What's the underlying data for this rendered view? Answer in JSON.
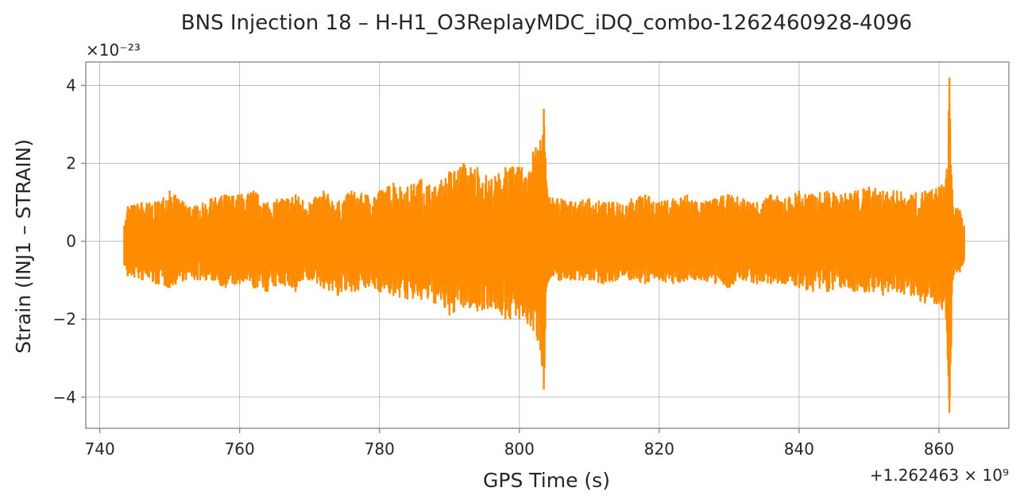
{
  "chart_data": {
    "type": "line",
    "title": "BNS Injection 18 – H-H1_O3ReplayMDC_iDQ_combo-1262460928-4096",
    "xlabel": "GPS Time (s)",
    "ylabel": "Strain (INJ1 – STRAIN)",
    "y_multiplier_text": "×10⁻²³",
    "x_offset_text": "+1.262463 × 10⁹",
    "xlim": [
      738,
      870
    ],
    "ylim": [
      -4.8,
      4.6
    ],
    "x_ticks": [
      740,
      760,
      780,
      800,
      820,
      840,
      860
    ],
    "x_tick_labels": [
      "740",
      "760",
      "780",
      "800",
      "820",
      "840",
      "860"
    ],
    "y_ticks": [
      -4,
      -2,
      0,
      2,
      4
    ],
    "y_tick_labels": [
      "−4",
      "−2",
      "0",
      "2",
      "4"
    ],
    "grid": true,
    "line_color": "#ff8c00",
    "series": [
      {
        "x": [
          743.5,
          744,
          746,
          748,
          750,
          752,
          754,
          756,
          758,
          760,
          762,
          764,
          766,
          768,
          770,
          772,
          774,
          776,
          778,
          780,
          782,
          784,
          786,
          788,
          790,
          792,
          794,
          796,
          798,
          800,
          802,
          803,
          803.5,
          804,
          806,
          808,
          810,
          812,
          814,
          816,
          818,
          820,
          822,
          824,
          826,
          828,
          830,
          832,
          834,
          836,
          838,
          840,
          842,
          844,
          846,
          848,
          850,
          852,
          854,
          856,
          858,
          860,
          861,
          861.5,
          862,
          863,
          863.6
        ],
        "envelope_upper": [
          0.4,
          0.9,
          1.0,
          1.0,
          1.3,
          1.0,
          0.9,
          1.1,
          1.2,
          1.2,
          1.3,
          1.0,
          1.1,
          1.2,
          1.0,
          1.3,
          1.0,
          1.3,
          1.2,
          1.3,
          1.5,
          1.4,
          1.6,
          1.4,
          1.8,
          2.0,
          1.9,
          1.6,
          1.9,
          1.9,
          2.3,
          2.6,
          3.4,
          1.2,
          1.1,
          1.0,
          1.1,
          1.0,
          1.0,
          1.1,
          1.2,
          1.0,
          1.1,
          1.2,
          1.0,
          1.1,
          1.2,
          1.1,
          1.0,
          1.2,
          1.1,
          1.3,
          1.2,
          1.3,
          1.2,
          1.3,
          1.4,
          1.3,
          1.3,
          1.2,
          1.3,
          1.4,
          1.6,
          4.2,
          0.9,
          0.8,
          0.4
        ],
        "envelope_lower": [
          -0.6,
          -0.9,
          -1.0,
          -1.1,
          -1.2,
          -1.0,
          -1.0,
          -1.0,
          -1.2,
          -1.1,
          -1.2,
          -1.3,
          -1.1,
          -1.3,
          -1.0,
          -1.2,
          -1.4,
          -1.3,
          -1.2,
          -1.3,
          -1.4,
          -1.5,
          -1.5,
          -1.6,
          -1.9,
          -1.7,
          -1.8,
          -1.7,
          -2.0,
          -2.0,
          -2.3,
          -2.8,
          -3.8,
          -1.1,
          -1.0,
          -1.0,
          -1.0,
          -1.1,
          -1.0,
          -1.0,
          -1.1,
          -1.0,
          -1.1,
          -1.0,
          -1.0,
          -1.1,
          -1.2,
          -1.0,
          -1.1,
          -1.1,
          -1.1,
          -1.2,
          -1.3,
          -1.3,
          -1.2,
          -1.3,
          -1.3,
          -1.4,
          -1.3,
          -1.4,
          -1.6,
          -1.6,
          -2.0,
          -4.4,
          -1.0,
          -0.8,
          -0.5
        ]
      }
    ]
  }
}
